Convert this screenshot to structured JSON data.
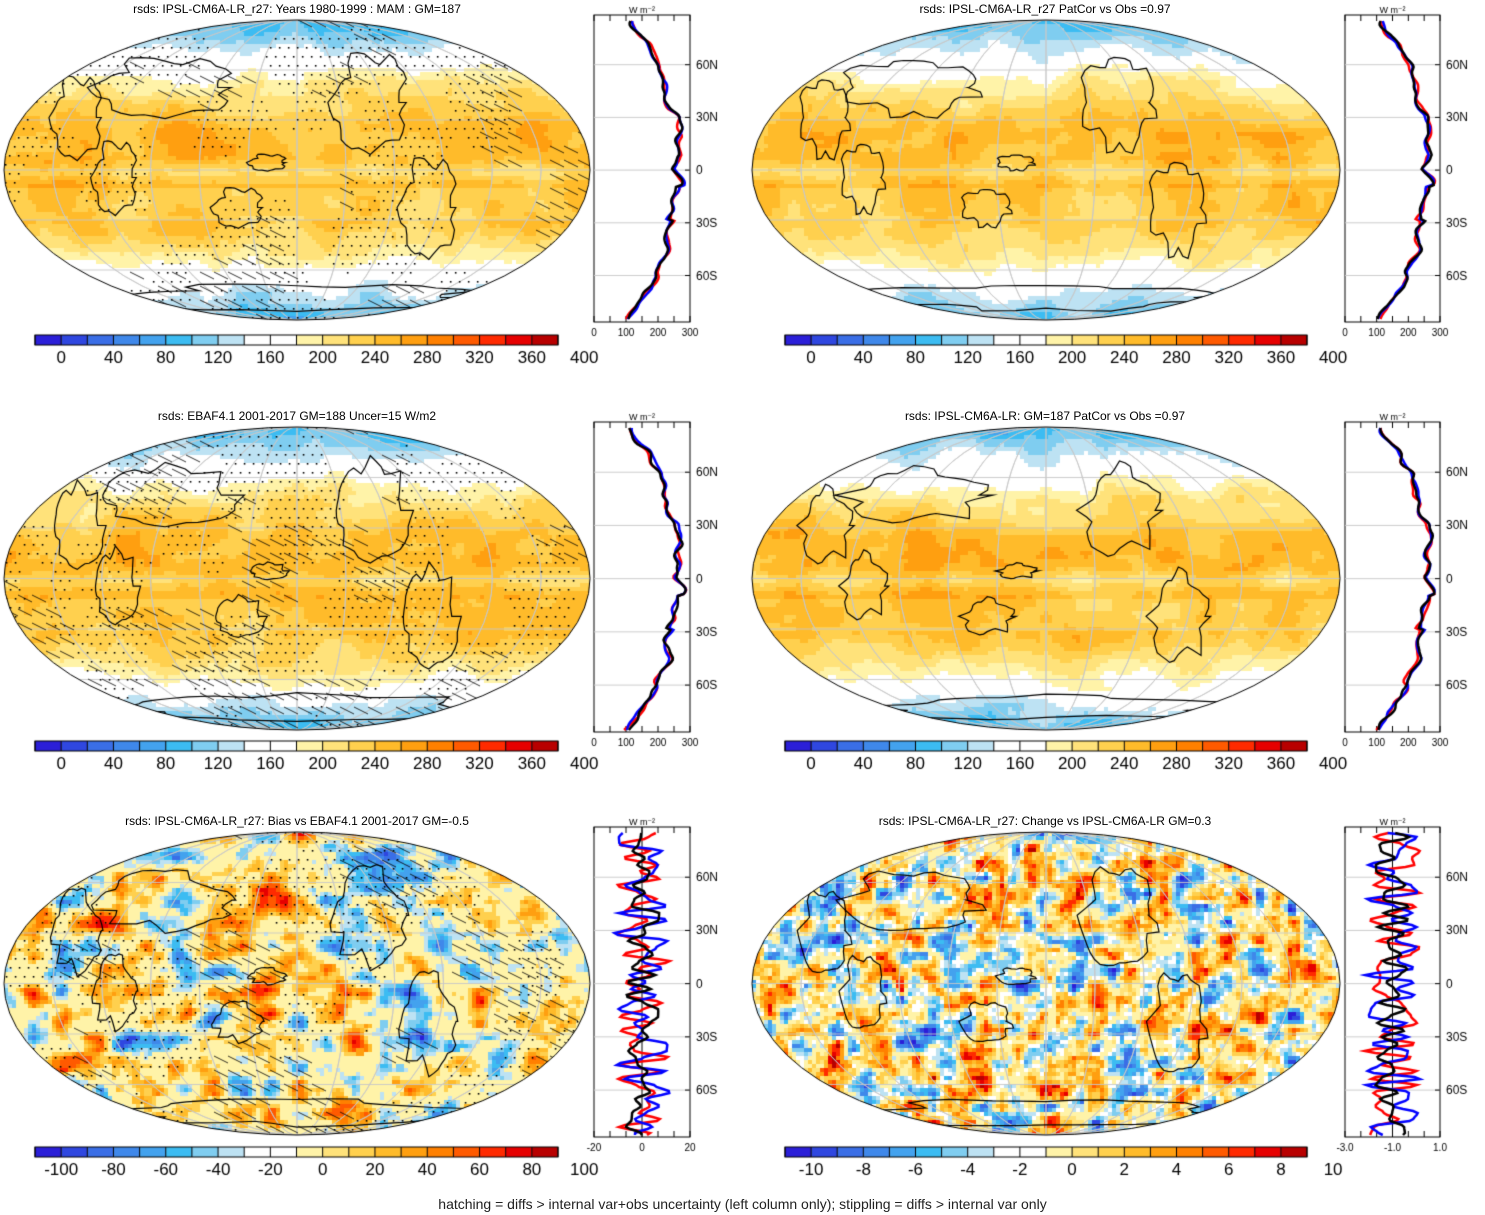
{
  "footer": "hatching = diffs > internal var+obs uncertainty (left column only); stippling = diffs > internal var only",
  "profile_units": "W m⁻²",
  "lat_labels": [
    "60N",
    "30N",
    "0",
    "30S",
    "60S"
  ],
  "panels": [
    {
      "title": "rsds: IPSL-CM6A-LR_r27: Years 1980-1999 : MAM : GM=187",
      "kind": "clim",
      "colorbar_labels": [
        "0",
        "40",
        "80",
        "120",
        "160",
        "200",
        "240",
        "280",
        "320",
        "360",
        "400"
      ],
      "profile_xticks": [
        "0",
        "100",
        "200",
        "300"
      ],
      "hatching": true,
      "stippling": true
    },
    {
      "title": "rsds: IPSL-CM6A-LR_r27 PatCor vs Obs =0.97",
      "kind": "clim",
      "colorbar_labels": [
        "0",
        "40",
        "80",
        "120",
        "160",
        "200",
        "240",
        "280",
        "320",
        "360",
        "400"
      ],
      "profile_xticks": [
        "0",
        "100",
        "200",
        "300"
      ],
      "hatching": false,
      "stippling": false
    },
    {
      "title": "rsds: EBAF4.1 2001-2017 GM=188 Uncer=15 W/m2",
      "kind": "clim",
      "colorbar_labels": [
        "0",
        "40",
        "80",
        "120",
        "160",
        "200",
        "240",
        "280",
        "320",
        "360",
        "400"
      ],
      "profile_xticks": [
        "0",
        "100",
        "200",
        "300"
      ],
      "hatching": true,
      "stippling": true
    },
    {
      "title": "rsds: IPSL-CM6A-LR: GM=187 PatCor vs Obs =0.97",
      "kind": "clim",
      "colorbar_labels": [
        "0",
        "40",
        "80",
        "120",
        "160",
        "200",
        "240",
        "280",
        "320",
        "360",
        "400"
      ],
      "profile_xticks": [
        "0",
        "100",
        "200",
        "300"
      ],
      "hatching": false,
      "stippling": false
    },
    {
      "title": "rsds: IPSL-CM6A-LR_r27: Bias vs EBAF4.1 2001-2017 GM=-0.5",
      "kind": "bias",
      "colorbar_labels": [
        "-100",
        "-80",
        "-60",
        "-40",
        "-20",
        "0",
        "20",
        "40",
        "60",
        "80",
        "100"
      ],
      "profile_xticks": [
        "-20",
        "0",
        "20"
      ],
      "hatching": true,
      "stippling": true
    },
    {
      "title": "rsds: IPSL-CM6A-LR_r27: Change vs IPSL-CM6A-LR GM=0.3",
      "kind": "change",
      "colorbar_labels": [
        "-10",
        "-8",
        "-6",
        "-4",
        "-2",
        "0",
        "2",
        "4",
        "6",
        "8",
        "10"
      ],
      "profile_xticks": [
        "-3.0",
        "-1.0",
        "1.0"
      ],
      "hatching": false,
      "stippling": false
    }
  ],
  "chart_data": {
    "type": "map",
    "variable": "rsds",
    "colors": {
      "palette": [
        "#2b1fd8",
        "#2f47e0",
        "#3a6ee6",
        "#3f88ea",
        "#43a2ee",
        "#3cbcf2",
        "#7fcdf0",
        "#bde2f3",
        "#ffffff",
        "#ffffff",
        "#fff3a8",
        "#ffe27a",
        "#ffd04e",
        "#ffbb2a",
        "#ff9f10",
        "#ff8000",
        "#ff5a00",
        "#ff2a00",
        "#e60000",
        "#b80000"
      ],
      "profile_lines": [
        "#ff0000",
        "#0000ff",
        "#000000"
      ]
    }
  }
}
